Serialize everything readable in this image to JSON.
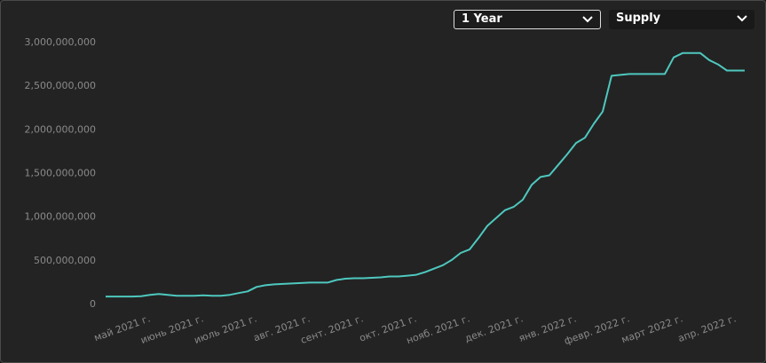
{
  "controls": [
    {
      "label": "1 Year"
    },
    {
      "label": "Supply"
    }
  ],
  "chart_data": {
    "type": "line",
    "color": "#4ec8bf",
    "categories": [
      null,
      null,
      null,
      null,
      null,
      "май 2021 г.",
      null,
      null,
      null,
      null,
      null,
      "июнь 2021 г.",
      null,
      null,
      null,
      null,
      null,
      "июль 2021 г.",
      null,
      null,
      null,
      null,
      null,
      "авг. 2021 г.",
      null,
      null,
      null,
      null,
      null,
      "сент. 2021 г.",
      null,
      null,
      null,
      null,
      null,
      "окт. 2021 г.",
      null,
      null,
      null,
      null,
      null,
      "нояб. 2021 г.",
      null,
      null,
      null,
      null,
      null,
      "дек. 2021 г.",
      null,
      null,
      null,
      null,
      null,
      "янв. 2022 г.",
      null,
      null,
      null,
      null,
      null,
      "февр. 2022 г.",
      null,
      null,
      null,
      null,
      null,
      "март 2022 г.",
      null,
      null,
      null,
      null,
      null,
      "апр. 2022 г.",
      null
    ],
    "values": [
      90000000,
      90000000,
      90000000,
      90000000,
      95000000,
      110000000,
      120000000,
      110000000,
      100000000,
      100000000,
      100000000,
      105000000,
      100000000,
      100000000,
      110000000,
      130000000,
      150000000,
      200000000,
      220000000,
      230000000,
      235000000,
      240000000,
      245000000,
      250000000,
      250000000,
      250000000,
      280000000,
      295000000,
      300000000,
      300000000,
      305000000,
      310000000,
      320000000,
      320000000,
      330000000,
      340000000,
      370000000,
      410000000,
      450000000,
      510000000,
      590000000,
      630000000,
      760000000,
      900000000,
      990000000,
      1080000000,
      1120000000,
      1200000000,
      1370000000,
      1460000000,
      1480000000,
      1600000000,
      1720000000,
      1850000000,
      1910000000,
      2070000000,
      2210000000,
      2620000000,
      2630000000,
      2640000000,
      2640000000,
      2640000000,
      2640000000,
      2640000000,
      2830000000,
      2880000000,
      2880000000,
      2880000000,
      2800000000,
      2750000000,
      2680000000,
      2680000000,
      2680000000
    ],
    "ylim": [
      0,
      3000000000
    ],
    "yticks": [
      0,
      {
        "value": 500000000,
        "label": "500,000,000"
      },
      {
        "value": 1000000000,
        "label": "1,000,000,000"
      },
      {
        "value": 1500000000,
        "label": "1,500,000,000"
      },
      {
        "value": 2000000000,
        "label": "2,000,000,000"
      },
      {
        "value": 2500000000,
        "label": "2,500,000,000"
      },
      {
        "value": 3000000000,
        "label": "3,000,000,000"
      }
    ],
    "grid": false
  }
}
